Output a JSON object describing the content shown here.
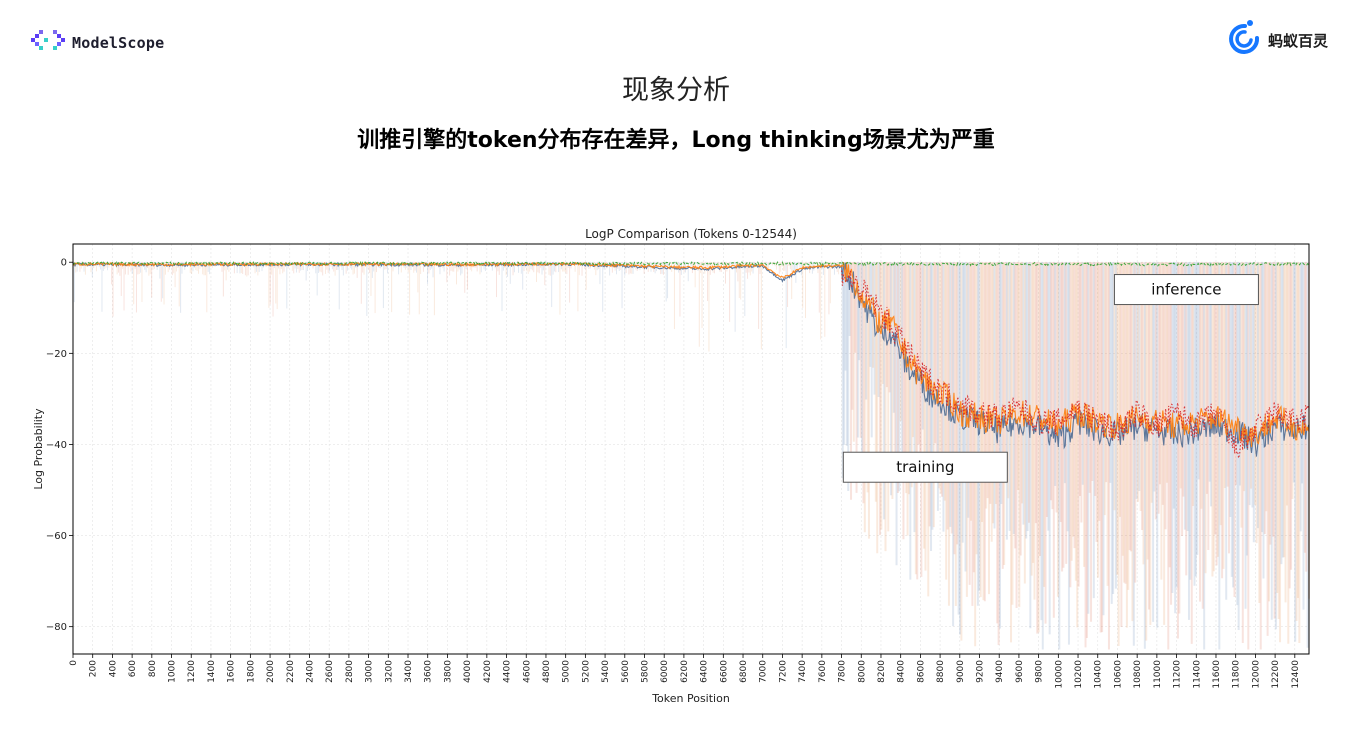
{
  "header": {
    "left_logo": {
      "icon": "modelscope-logo-icon",
      "text": "ModelScope"
    },
    "right_logo": {
      "icon": "ant-bailing-logo-icon",
      "text": "蚂蚁百灵"
    }
  },
  "slide": {
    "title": "现象分析",
    "subtitle": "训推引擎的token分布存在差异，Long thinking场景尤为严重"
  },
  "chart_data": {
    "type": "line",
    "title": "LogP Comparison (Tokens 0-12544)",
    "xlabel": "Token Position",
    "ylabel": "Log Probability",
    "xlim": [
      0,
      12544
    ],
    "ylim": [
      -86,
      4
    ],
    "xticks": [
      0,
      200,
      400,
      600,
      800,
      1000,
      1200,
      1400,
      1600,
      1800,
      2000,
      2200,
      2400,
      2600,
      2800,
      3000,
      3200,
      3400,
      3600,
      3800,
      4000,
      4200,
      4400,
      4600,
      4800,
      5000,
      5200,
      5400,
      5600,
      5800,
      6000,
      6200,
      6400,
      6600,
      6800,
      7000,
      7200,
      7400,
      7600,
      7800,
      8000,
      8200,
      8400,
      8600,
      8800,
      9000,
      9200,
      9400,
      9600,
      9800,
      10000,
      10200,
      10400,
      10600,
      10800,
      11000,
      11200,
      11400,
      11600,
      11800,
      12000,
      12200,
      12400
    ],
    "yticks": [
      0,
      -20,
      -40,
      -60,
      -80
    ],
    "ytick_labels": [
      "0",
      "−20",
      "−40",
      "−60",
      "−80"
    ],
    "grid": true,
    "annotations": [
      {
        "text": "inference",
        "x": 11300,
        "y": -6
      },
      {
        "text": "training",
        "x": 8650,
        "y": -45
      }
    ],
    "series": [
      {
        "color": "#4c6a92",
        "x": [
          0,
          1000,
          2000,
          3000,
          4000,
          5000,
          6000,
          6400,
          7000,
          7200,
          7400,
          7600,
          7800,
          7900,
          8000,
          8100,
          8200,
          8300,
          8400,
          8500,
          8600,
          8700,
          8800,
          8900,
          9000,
          9200,
          9400,
          9600,
          9800,
          10000,
          10200,
          10400,
          10600,
          10800,
          11000,
          11200,
          11400,
          11600,
          11800,
          12000,
          12200,
          12400,
          12544
        ],
        "values": [
          -0.5,
          -0.6,
          -0.5,
          -0.5,
          -0.6,
          -0.4,
          -1.2,
          -1.5,
          -0.8,
          -4,
          -1.5,
          -1,
          -1,
          -4,
          -8,
          -12,
          -16,
          -15,
          -20,
          -24,
          -26,
          -29,
          -30,
          -32,
          -34,
          -35,
          -37,
          -35,
          -36,
          -39,
          -35,
          -37,
          -38,
          -36,
          -37,
          -38,
          -37,
          -36,
          -37,
          -40,
          -36,
          -37,
          -36
        ]
      },
      {
        "color": "#ff7f0e",
        "x": [
          0,
          1000,
          2000,
          3000,
          4000,
          5000,
          6000,
          6400,
          7000,
          7200,
          7400,
          7600,
          7800,
          7900,
          8000,
          8100,
          8200,
          8300,
          8400,
          8500,
          8600,
          8700,
          8800,
          8900,
          9000,
          9200,
          9400,
          9600,
          9800,
          10000,
          10200,
          10400,
          10600,
          10800,
          11000,
          11200,
          11400,
          11600,
          11800,
          12000,
          12200,
          12400,
          12544
        ],
        "values": [
          -0.4,
          -0.5,
          -0.4,
          -0.4,
          -0.5,
          -0.3,
          -1,
          -1.2,
          -0.6,
          -3.5,
          -1.2,
          -0.8,
          -0.8,
          -3,
          -7,
          -10,
          -14,
          -13,
          -18,
          -22,
          -25,
          -27,
          -29,
          -30,
          -33,
          -34,
          -35,
          -33,
          -34,
          -36,
          -33,
          -35,
          -36,
          -34,
          -35,
          -36,
          -35,
          -34,
          -36,
          -38,
          -34,
          -36,
          -37
        ]
      },
      {
        "color": "#d62728",
        "x": [
          7800,
          8000,
          8200,
          8400,
          8600,
          8800,
          9000,
          9200,
          9400,
          9600,
          9800,
          10000,
          10200,
          10400,
          10600,
          10800,
          11000,
          11200,
          11400,
          11600,
          11800,
          12000,
          12200,
          12400,
          12544
        ],
        "values": [
          -2,
          -6,
          -11,
          -17,
          -24,
          -28,
          -31,
          -33,
          -34,
          -32,
          -35,
          -35,
          -32,
          -35,
          -37,
          -33,
          -36,
          -33,
          -36,
          -33,
          -41,
          -37,
          -33,
          -35,
          -34
        ]
      },
      {
        "color": "#2ca02c",
        "x": [
          0,
          2000,
          4000,
          6000,
          7800,
          8500,
          9000,
          10000,
          11000,
          12000,
          12544
        ],
        "values": [
          -0.2,
          -0.2,
          -0.2,
          -0.3,
          -0.3,
          -0.4,
          -0.4,
          -0.4,
          -0.5,
          -0.4,
          -0.4
        ]
      }
    ]
  }
}
